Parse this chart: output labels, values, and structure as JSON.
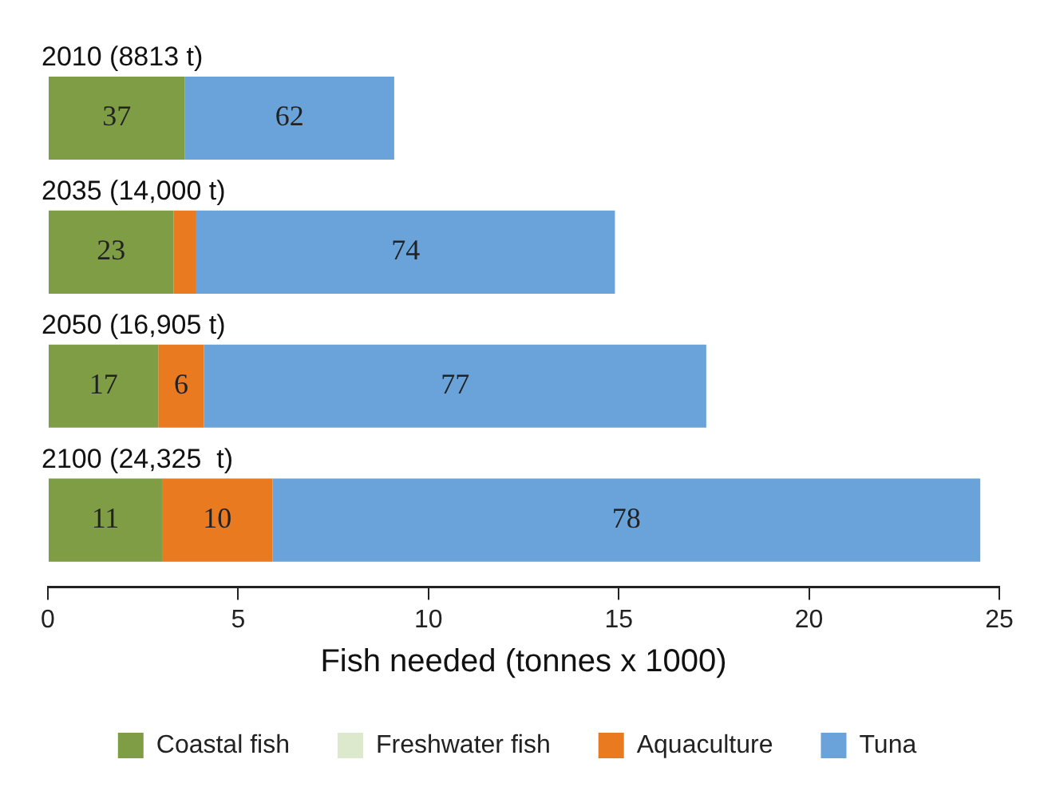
{
  "chart_data": {
    "type": "bar",
    "orientation": "horizontal",
    "stacked": true,
    "categories": [
      "2010 (8813 t)",
      "2035 (14,000 t)",
      "2050 (16,905 t)",
      "2100 (24,325  t)"
    ],
    "series": [
      {
        "name": "Coastal fish",
        "color": "#7e9d45",
        "values": [
          3.6,
          3.3,
          2.9,
          3
        ]
      },
      {
        "name": "Freshwater fish",
        "color": "#dde9cc",
        "values": [
          null,
          null,
          null,
          null
        ]
      },
      {
        "name": "Aquaculture",
        "color": "#e97a1f",
        "values": [
          null,
          0.6,
          1.2,
          2.9
        ]
      },
      {
        "name": "Tuna",
        "color": "#6aa3d9",
        "values": [
          5.5,
          11,
          13.2,
          18.6
        ]
      }
    ],
    "annotations": [
      "37",
      "62",
      "23",
      "74",
      "17",
      "6",
      "77",
      "11",
      "10",
      "78"
    ],
    "xlim": [
      0,
      25
    ],
    "xticks": [
      0,
      5,
      10,
      15,
      20,
      25
    ],
    "xlabel": "Fish needed (tonnes x 1000)",
    "grid": false,
    "legend": "bottom"
  }
}
